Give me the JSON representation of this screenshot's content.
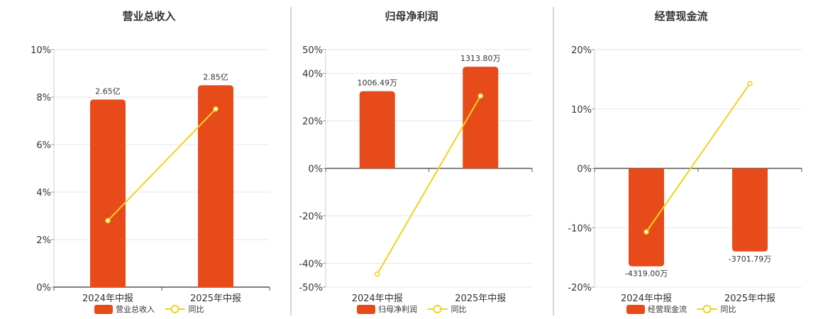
{
  "colors": {
    "bar": "#e84b1a",
    "line": "#f2d21b",
    "grid": "#e4e7ef",
    "axis": "#555555",
    "divider": "#aaaaaa"
  },
  "chart_data": [
    {
      "type": "bar",
      "title": "营业总收入",
      "categories": [
        "2024年中报",
        "2025年中报"
      ],
      "bar_series": {
        "name": "营业总收入",
        "values": [
          7.9,
          8.5
        ],
        "labels": [
          "2.65亿",
          "2.85亿"
        ]
      },
      "line_series": {
        "name": "同比",
        "values": [
          2.8,
          7.5
        ]
      },
      "ylim": [
        0,
        10
      ],
      "yticks": [
        0,
        2,
        4,
        6,
        8,
        10
      ],
      "ytick_labels": [
        "0%",
        "2%",
        "4%",
        "6%",
        "8%",
        "10%"
      ],
      "grid": true,
      "legend": "bottom",
      "label_below_when_negative": false
    },
    {
      "type": "bar",
      "title": "归母净利润",
      "categories": [
        "2024年中报",
        "2025年中报"
      ],
      "bar_series": {
        "name": "归母净利润",
        "values": [
          32.5,
          42.8
        ],
        "labels": [
          "1006.49万",
          "1313.80万"
        ]
      },
      "line_series": {
        "name": "同比",
        "values": [
          -44.5,
          30.5
        ]
      },
      "ylim": [
        -50,
        50
      ],
      "yticks": [
        -50,
        -40,
        -20,
        0,
        20,
        40,
        50
      ],
      "ytick_labels": [
        "-50%",
        "-40%",
        "-20%",
        "0%",
        "20%",
        "40%",
        "50%"
      ],
      "grid": true,
      "legend": "bottom",
      "label_below_when_negative": true
    },
    {
      "type": "bar",
      "title": "经营现金流",
      "categories": [
        "2024年中报",
        "2025年中报"
      ],
      "bar_series": {
        "name": "经营现金流",
        "values": [
          -16.5,
          -14.0
        ],
        "labels": [
          "-4319.00万",
          "-3701.79万"
        ]
      },
      "line_series": {
        "name": "同比",
        "values": [
          -10.7,
          14.3
        ]
      },
      "ylim": [
        -20,
        20
      ],
      "yticks": [
        -20,
        -10,
        0,
        10,
        20
      ],
      "ytick_labels": [
        "-20%",
        "-10%",
        "0%",
        "10%",
        "20%"
      ],
      "grid": true,
      "legend": "bottom",
      "label_below_when_negative": true
    }
  ]
}
